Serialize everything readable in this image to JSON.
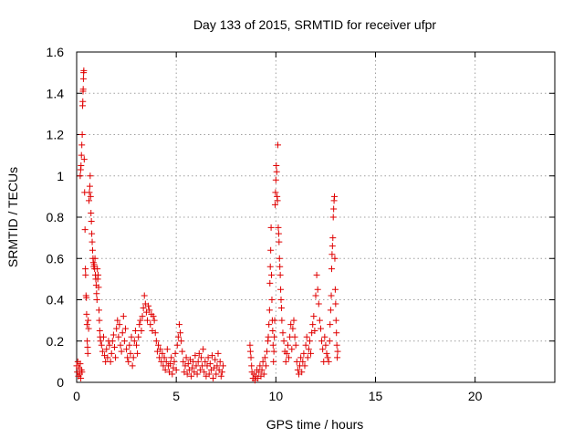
{
  "chart_data": {
    "type": "scatter",
    "title": "Day 133 of 2015, SRMTID for receiver ufpr",
    "xlabel": "GPS time / hours",
    "ylabel": "SRMTID / TECUs",
    "xlim": [
      0,
      24
    ],
    "ylim": [
      0,
      1.6
    ],
    "grid": true,
    "marker": "+",
    "color": "#e00000",
    "x_ticks": [
      0,
      5,
      10,
      15,
      20
    ],
    "x_tick_labels": [
      "0",
      "5",
      "10",
      "15",
      "20"
    ],
    "y_ticks": [
      0,
      0.2,
      0.4,
      0.6,
      0.8,
      1.0,
      1.2,
      1.4,
      1.6
    ],
    "y_tick_labels": [
      "0",
      "0.2",
      "0.4",
      "0.6",
      "0.8",
      "1",
      "1.2",
      "1.4",
      "1.6"
    ],
    "series": [
      {
        "name": "SRMTID",
        "points": [
          [
            0.0,
            0.08
          ],
          [
            0.03,
            0.05
          ],
          [
            0.06,
            0.1
          ],
          [
            0.09,
            0.03
          ],
          [
            0.12,
            0.07
          ],
          [
            0.15,
            0.04
          ],
          [
            0.18,
            0.09
          ],
          [
            0.21,
            0.02
          ],
          [
            0.24,
            0.06
          ],
          [
            0.27,
            0.05
          ],
          [
            0.18,
            1.0
          ],
          [
            0.2,
            1.03
          ],
          [
            0.22,
            1.05
          ],
          [
            0.24,
            1.1
          ],
          [
            0.26,
            1.15
          ],
          [
            0.28,
            1.2
          ],
          [
            0.3,
            1.34
          ],
          [
            0.31,
            1.36
          ],
          [
            0.32,
            1.41
          ],
          [
            0.33,
            1.42
          ],
          [
            0.34,
            1.47
          ],
          [
            0.35,
            1.5
          ],
          [
            0.36,
            1.51
          ],
          [
            0.38,
            1.08
          ],
          [
            0.4,
            0.92
          ],
          [
            0.42,
            0.74
          ],
          [
            0.44,
            0.55
          ],
          [
            0.45,
            0.52
          ],
          [
            0.47,
            0.42
          ],
          [
            0.49,
            0.41
          ],
          [
            0.5,
            0.33
          ],
          [
            0.52,
            0.28
          ],
          [
            0.53,
            0.2
          ],
          [
            0.55,
            0.17
          ],
          [
            0.56,
            0.14
          ],
          [
            0.58,
            0.3
          ],
          [
            0.6,
            0.26
          ],
          [
            0.62,
            0.88
          ],
          [
            0.64,
            0.92
          ],
          [
            0.66,
            0.95
          ],
          [
            0.68,
            1.0
          ],
          [
            0.7,
            0.9
          ],
          [
            0.72,
            0.82
          ],
          [
            0.74,
            0.78
          ],
          [
            0.76,
            0.72
          ],
          [
            0.78,
            0.68
          ],
          [
            0.8,
            0.64
          ],
          [
            0.82,
            0.6
          ],
          [
            0.84,
            0.58
          ],
          [
            0.86,
            0.56
          ],
          [
            0.88,
            0.57
          ],
          [
            0.9,
            0.55
          ],
          [
            0.92,
            0.6
          ],
          [
            0.94,
            0.52
          ],
          [
            0.96,
            0.5
          ],
          [
            0.98,
            0.47
          ],
          [
            1.0,
            0.43
          ],
          [
            1.02,
            0.4
          ],
          [
            1.04,
            0.55
          ],
          [
            1.06,
            0.5
          ],
          [
            1.08,
            0.52
          ],
          [
            1.1,
            0.46
          ],
          [
            1.12,
            0.35
          ],
          [
            1.14,
            0.3
          ],
          [
            1.16,
            0.25
          ],
          [
            1.18,
            0.22
          ],
          [
            1.2,
            0.2
          ],
          [
            1.25,
            0.18
          ],
          [
            1.3,
            0.15
          ],
          [
            1.35,
            0.22
          ],
          [
            1.4,
            0.13
          ],
          [
            1.45,
            0.1
          ],
          [
            1.5,
            0.16
          ],
          [
            1.55,
            0.12
          ],
          [
            1.6,
            0.2
          ],
          [
            1.65,
            0.18
          ],
          [
            1.7,
            0.1
          ],
          [
            1.75,
            0.14
          ],
          [
            1.8,
            0.2
          ],
          [
            1.85,
            0.23
          ],
          [
            1.9,
            0.17
          ],
          [
            1.95,
            0.12
          ],
          [
            2.0,
            0.26
          ],
          [
            2.05,
            0.3
          ],
          [
            2.1,
            0.22
          ],
          [
            2.15,
            0.28
          ],
          [
            2.2,
            0.18
          ],
          [
            2.25,
            0.15
          ],
          [
            2.3,
            0.24
          ],
          [
            2.35,
            0.32
          ],
          [
            2.4,
            0.2
          ],
          [
            2.45,
            0.26
          ],
          [
            2.5,
            0.16
          ],
          [
            2.55,
            0.12
          ],
          [
            2.6,
            0.1
          ],
          [
            2.65,
            0.18
          ],
          [
            2.7,
            0.14
          ],
          [
            2.75,
            0.22
          ],
          [
            2.8,
            0.08
          ],
          [
            2.85,
            0.12
          ],
          [
            2.9,
            0.2
          ],
          [
            2.95,
            0.25
          ],
          [
            3.0,
            0.18
          ],
          [
            3.05,
            0.14
          ],
          [
            3.1,
            0.22
          ],
          [
            3.15,
            0.28
          ],
          [
            3.2,
            0.3
          ],
          [
            3.25,
            0.25
          ],
          [
            3.3,
            0.32
          ],
          [
            3.35,
            0.36
          ],
          [
            3.4,
            0.42
          ],
          [
            3.45,
            0.38
          ],
          [
            3.5,
            0.34
          ],
          [
            3.55,
            0.3
          ],
          [
            3.6,
            0.37
          ],
          [
            3.65,
            0.35
          ],
          [
            3.7,
            0.28
          ],
          [
            3.75,
            0.33
          ],
          [
            3.8,
            0.25
          ],
          [
            3.85,
            0.32
          ],
          [
            3.9,
            0.3
          ],
          [
            3.95,
            0.24
          ],
          [
            4.0,
            0.2
          ],
          [
            4.05,
            0.15
          ],
          [
            4.1,
            0.18
          ],
          [
            4.15,
            0.12
          ],
          [
            4.2,
            0.16
          ],
          [
            4.25,
            0.1
          ],
          [
            4.3,
            0.14
          ],
          [
            4.35,
            0.08
          ],
          [
            4.4,
            0.12
          ],
          [
            4.45,
            0.06
          ],
          [
            4.5,
            0.1
          ],
          [
            4.55,
            0.16
          ],
          [
            4.6,
            0.08
          ],
          [
            4.65,
            0.05
          ],
          [
            4.7,
            0.09
          ],
          [
            4.75,
            0.12
          ],
          [
            4.8,
            0.04
          ],
          [
            4.85,
            0.07
          ],
          [
            4.9,
            0.1
          ],
          [
            4.95,
            0.14
          ],
          [
            5.0,
            0.06
          ],
          [
            5.05,
            0.18
          ],
          [
            5.1,
            0.22
          ],
          [
            5.15,
            0.28
          ],
          [
            5.2,
            0.24
          ],
          [
            5.25,
            0.2
          ],
          [
            5.3,
            0.15
          ],
          [
            5.35,
            0.1
          ],
          [
            5.4,
            0.05
          ],
          [
            5.45,
            0.08
          ],
          [
            5.5,
            0.12
          ],
          [
            5.55,
            0.04
          ],
          [
            5.6,
            0.09
          ],
          [
            5.65,
            0.06
          ],
          [
            5.7,
            0.11
          ],
          [
            5.75,
            0.03
          ],
          [
            5.8,
            0.07
          ],
          [
            5.85,
            0.1
          ],
          [
            5.9,
            0.05
          ],
          [
            5.95,
            0.13
          ],
          [
            6.0,
            0.08
          ],
          [
            6.05,
            0.04
          ],
          [
            6.1,
            0.1
          ],
          [
            6.15,
            0.14
          ],
          [
            6.2,
            0.06
          ],
          [
            6.25,
            0.12
          ],
          [
            6.3,
            0.08
          ],
          [
            6.35,
            0.16
          ],
          [
            6.4,
            0.05
          ],
          [
            6.45,
            0.1
          ],
          [
            6.5,
            0.03
          ],
          [
            6.55,
            0.08
          ],
          [
            6.6,
            0.12
          ],
          [
            6.65,
            0.04
          ],
          [
            6.7,
            0.09
          ],
          [
            6.75,
            0.06
          ],
          [
            6.8,
            0.13
          ],
          [
            6.85,
            0.02
          ],
          [
            6.9,
            0.07
          ],
          [
            6.95,
            0.11
          ],
          [
            7.0,
            0.04
          ],
          [
            7.05,
            0.08
          ],
          [
            7.1,
            0.14
          ],
          [
            7.15,
            0.06
          ],
          [
            7.2,
            0.1
          ],
          [
            7.25,
            0.03
          ],
          [
            7.3,
            0.05
          ],
          [
            7.35,
            0.08
          ],
          [
            8.7,
            0.18
          ],
          [
            8.72,
            0.15
          ],
          [
            8.75,
            0.12
          ],
          [
            8.78,
            0.08
          ],
          [
            8.8,
            0.05
          ],
          [
            8.85,
            0.02
          ],
          [
            8.9,
            0.04
          ],
          [
            8.95,
            0.01
          ],
          [
            9.0,
            0.03
          ],
          [
            9.05,
            0.06
          ],
          [
            9.1,
            0.02
          ],
          [
            9.15,
            0.05
          ],
          [
            9.2,
            0.08
          ],
          [
            9.25,
            0.03
          ],
          [
            9.3,
            0.06
          ],
          [
            9.35,
            0.1
          ],
          [
            9.4,
            0.04
          ],
          [
            9.45,
            0.12
          ],
          [
            9.5,
            0.08
          ],
          [
            9.55,
            0.15
          ],
          [
            9.6,
            0.2
          ],
          [
            9.62,
            0.22
          ],
          [
            9.65,
            0.28
          ],
          [
            9.68,
            0.35
          ],
          [
            9.7,
            0.48
          ],
          [
            9.72,
            0.56
          ],
          [
            9.74,
            0.64
          ],
          [
            9.76,
            0.75
          ],
          [
            9.78,
            0.52
          ],
          [
            9.8,
            0.4
          ],
          [
            9.82,
            0.3
          ],
          [
            9.84,
            0.25
          ],
          [
            9.86,
            0.18
          ],
          [
            9.88,
            0.1
          ],
          [
            9.9,
            0.15
          ],
          [
            9.92,
            0.22
          ],
          [
            9.94,
            0.3
          ],
          [
            9.96,
            0.86
          ],
          [
            9.98,
            0.92
          ],
          [
            10.0,
            0.98
          ],
          [
            10.02,
            1.05
          ],
          [
            10.04,
            1.02
          ],
          [
            10.06,
            0.9
          ],
          [
            10.08,
            0.88
          ],
          [
            10.1,
            1.15
          ],
          [
            10.12,
            0.75
          ],
          [
            10.14,
            0.72
          ],
          [
            10.16,
            0.68
          ],
          [
            10.18,
            0.6
          ],
          [
            10.2,
            0.56
          ],
          [
            10.22,
            0.52
          ],
          [
            10.24,
            0.45
          ],
          [
            10.26,
            0.4
          ],
          [
            10.28,
            0.36
          ],
          [
            10.3,
            0.3
          ],
          [
            10.35,
            0.24
          ],
          [
            10.4,
            0.2
          ],
          [
            10.45,
            0.15
          ],
          [
            10.5,
            0.1
          ],
          [
            10.55,
            0.14
          ],
          [
            10.6,
            0.18
          ],
          [
            10.65,
            0.12
          ],
          [
            10.7,
            0.22
          ],
          [
            10.75,
            0.28
          ],
          [
            10.8,
            0.16
          ],
          [
            10.85,
            0.26
          ],
          [
            10.9,
            0.3
          ],
          [
            10.95,
            0.22
          ],
          [
            11.0,
            0.18
          ],
          [
            11.05,
            0.1
          ],
          [
            11.1,
            0.06
          ],
          [
            11.15,
            0.04
          ],
          [
            11.2,
            0.08
          ],
          [
            11.25,
            0.12
          ],
          [
            11.3,
            0.05
          ],
          [
            11.35,
            0.1
          ],
          [
            11.4,
            0.14
          ],
          [
            11.45,
            0.08
          ],
          [
            11.5,
            0.18
          ],
          [
            11.55,
            0.22
          ],
          [
            11.6,
            0.12
          ],
          [
            11.65,
            0.16
          ],
          [
            11.7,
            0.2
          ],
          [
            11.75,
            0.14
          ],
          [
            11.8,
            0.24
          ],
          [
            11.85,
            0.28
          ],
          [
            11.9,
            0.32
          ],
          [
            11.95,
            0.25
          ],
          [
            12.0,
            0.42
          ],
          [
            12.05,
            0.52
          ],
          [
            12.1,
            0.45
          ],
          [
            12.15,
            0.38
          ],
          [
            12.2,
            0.3
          ],
          [
            12.25,
            0.26
          ],
          [
            12.3,
            0.2
          ],
          [
            12.35,
            0.16
          ],
          [
            12.4,
            0.1
          ],
          [
            12.45,
            0.22
          ],
          [
            12.5,
            0.18
          ],
          [
            12.55,
            0.14
          ],
          [
            12.6,
            0.12
          ],
          [
            12.65,
            0.1
          ],
          [
            12.7,
            0.2
          ],
          [
            12.72,
            0.28
          ],
          [
            12.75,
            0.35
          ],
          [
            12.78,
            0.42
          ],
          [
            12.8,
            0.55
          ],
          [
            12.82,
            0.62
          ],
          [
            12.84,
            0.66
          ],
          [
            12.86,
            0.7
          ],
          [
            12.88,
            0.8
          ],
          [
            12.9,
            0.84
          ],
          [
            12.92,
            0.88
          ],
          [
            12.94,
            0.9
          ],
          [
            12.96,
            0.6
          ],
          [
            12.98,
            0.45
          ],
          [
            13.0,
            0.38
          ],
          [
            13.02,
            0.3
          ],
          [
            13.04,
            0.24
          ],
          [
            13.06,
            0.18
          ],
          [
            13.08,
            0.12
          ],
          [
            13.1,
            0.15
          ]
        ]
      }
    ]
  }
}
